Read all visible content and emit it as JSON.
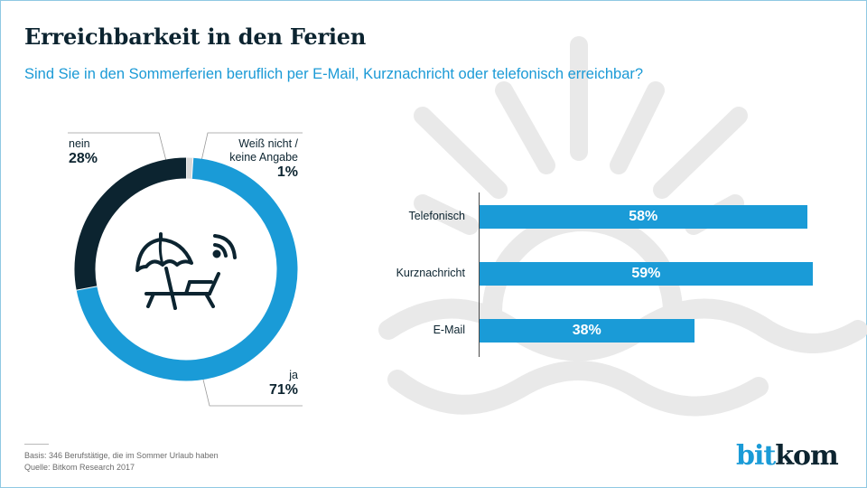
{
  "header": {
    "title": "Erreichbarkeit in den Ferien",
    "subtitle": "Sind Sie in den Sommerferien beruflich per E-Mail, Kurznachricht oder telefonisch erreichbar?"
  },
  "colors": {
    "accent": "#1a9bd7",
    "dark": "#0c2430",
    "unknown": "#d9d9d9",
    "watermark": "#e8e8e8"
  },
  "chart_data": [
    {
      "type": "pie",
      "variant": "donut",
      "categories": [
        "ja",
        "nein",
        "Weiß nicht / keine Angabe"
      ],
      "values": [
        71,
        28,
        1
      ],
      "labels": [
        "71%",
        "28%",
        "1%"
      ],
      "colors": [
        "#1a9bd7",
        "#0c2430",
        "#d9d9d9"
      ],
      "center_icon": "beach-chair-umbrella-wifi-icon"
    },
    {
      "type": "bar",
      "orientation": "horizontal",
      "categories": [
        "Telefonisch",
        "Kurznachricht",
        "E-Mail"
      ],
      "values": [
        58,
        59,
        38
      ],
      "labels": [
        "58%",
        "59%",
        "38%"
      ],
      "xlim": [
        0,
        100
      ],
      "xlabel": "",
      "ylabel": "",
      "grid": false
    }
  ],
  "donut_labels": {
    "nein": {
      "name": "nein",
      "value": "28%"
    },
    "unknown": {
      "name_line1": "Weiß nicht /",
      "name_line2": "keine Angabe",
      "value": "1%"
    },
    "ja": {
      "name": "ja",
      "value": "71%"
    }
  },
  "footer": {
    "basis": "Basis: 346 Berufstätige, die im Sommer Urlaub haben",
    "source": "Quelle: Bitkom Research 2017"
  },
  "logo": {
    "part1": "bit",
    "part2": "kom"
  }
}
